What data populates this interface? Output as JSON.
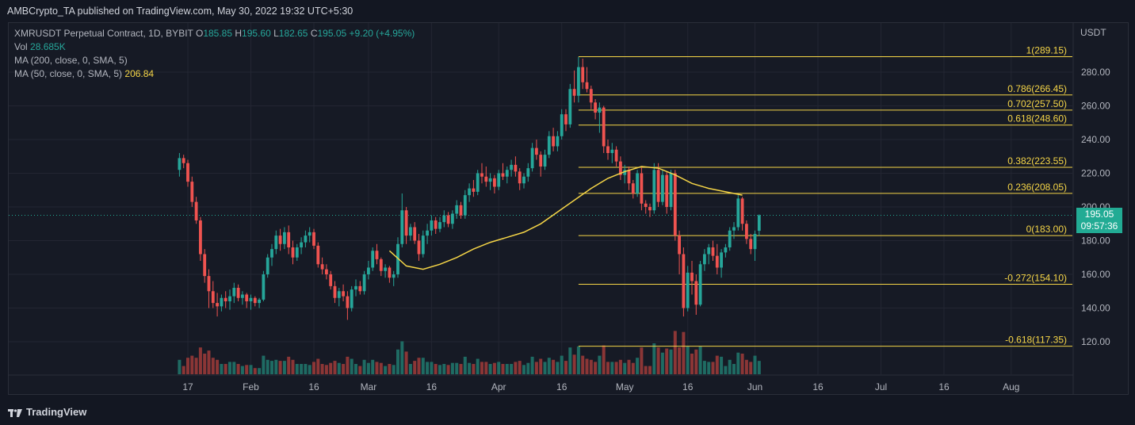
{
  "header": {
    "publisher_line": "AMBCrypto_TA published on TradingView.com, May 30, 2022 19:32 UTC+5:30"
  },
  "legend": {
    "symbol": "XMRUSDT Perpetual Contract, 1D, BYBIT",
    "o_label": "O",
    "o_value": "185.85",
    "h_label": "H",
    "h_value": "195.60",
    "l_label": "L",
    "l_value": "182.65",
    "c_label": "C",
    "c_value": "195.05",
    "change": "+9.20 (+4.95%)",
    "vol_label": "Vol",
    "vol_value": "28.685K",
    "ma200_label": "MA (200, close, 0, SMA, 5)",
    "ma50_label": "MA (50, close, 0, SMA, 5)",
    "ma50_value": "206.84"
  },
  "price_tag": {
    "price": "195.05",
    "countdown": "09:57:36"
  },
  "footer": {
    "brand": "TradingView"
  },
  "colors": {
    "up": "#26a69a",
    "down": "#ef5350",
    "fib": "#f5d547",
    "ma50": "#f5d547",
    "bg": "#161a25"
  },
  "chart_data": {
    "type": "candlestick",
    "currency_label": "USDT",
    "y_ticks": [
      120,
      140,
      160,
      180,
      200,
      220,
      240,
      260,
      280
    ],
    "y_tick_labels": [
      "120.00",
      "140.00",
      "160.00",
      "180.00",
      "200.00",
      "220.00",
      "240.00",
      "260.00",
      "280.00"
    ],
    "x_ticks": [
      "17",
      "Feb",
      "16",
      "Mar",
      "16",
      "Apr",
      "16",
      "May",
      "16",
      "Jun",
      "16",
      "Jul",
      "16",
      "Aug"
    ],
    "x_tick_dates": [
      "2022-01-17",
      "2022-02-01",
      "2022-02-16",
      "2022-03-01",
      "2022-03-16",
      "2022-04-01",
      "2022-04-16",
      "2022-05-01",
      "2022-05-16",
      "2022-06-01",
      "2022-06-16",
      "2022-07-01",
      "2022-07-16",
      "2022-08-01"
    ],
    "last_price": 195.05,
    "fib_levels": [
      {
        "label": "1(289.15)",
        "price": 289.15
      },
      {
        "label": "0.786(266.45)",
        "price": 266.45
      },
      {
        "label": "0.702(257.50)",
        "price": 257.5
      },
      {
        "label": "0.618(248.60)",
        "price": 248.6
      },
      {
        "label": "0.382(223.55)",
        "price": 223.55
      },
      {
        "label": "0.236(208.05)",
        "price": 208.05
      },
      {
        "label": "0(183.00)",
        "price": 183.0
      },
      {
        "label": "-0.272(154.10)",
        "price": 154.1
      },
      {
        "label": "-0.618(117.35)",
        "price": 117.35
      }
    ],
    "fib_start": "2022-04-20",
    "ma50": [
      [
        "2022-03-06",
        174
      ],
      [
        "2022-03-10",
        165
      ],
      [
        "2022-03-14",
        163
      ],
      [
        "2022-03-18",
        166
      ],
      [
        "2022-03-22",
        170
      ],
      [
        "2022-03-26",
        175
      ],
      [
        "2022-03-30",
        179
      ],
      [
        "2022-04-03",
        182
      ],
      [
        "2022-04-07",
        185
      ],
      [
        "2022-04-11",
        190
      ],
      [
        "2022-04-15",
        197
      ],
      [
        "2022-04-19",
        204
      ],
      [
        "2022-04-23",
        211
      ],
      [
        "2022-04-27",
        217
      ],
      [
        "2022-05-01",
        221
      ],
      [
        "2022-05-05",
        224
      ],
      [
        "2022-05-09",
        223
      ],
      [
        "2022-05-13",
        219
      ],
      [
        "2022-05-17",
        214
      ],
      [
        "2022-05-21",
        211
      ],
      [
        "2022-05-25",
        209
      ],
      [
        "2022-05-29",
        207
      ]
    ],
    "candles": [
      [
        "2022-01-15",
        222,
        232,
        218,
        229
      ],
      [
        "2022-01-16",
        229,
        231,
        223,
        226
      ],
      [
        "2022-01-17",
        226,
        228,
        212,
        215
      ],
      [
        "2022-01-18",
        215,
        218,
        200,
        203
      ],
      [
        "2022-01-19",
        203,
        206,
        190,
        192
      ],
      [
        "2022-01-20",
        192,
        194,
        168,
        172
      ],
      [
        "2022-01-21",
        172,
        175,
        155,
        159
      ],
      [
        "2022-01-22",
        159,
        163,
        140,
        150
      ],
      [
        "2022-01-23",
        150,
        156,
        140,
        143
      ],
      [
        "2022-01-24",
        143,
        149,
        135,
        141
      ],
      [
        "2022-01-25",
        141,
        148,
        138,
        146
      ],
      [
        "2022-01-26",
        146,
        150,
        140,
        144
      ],
      [
        "2022-01-27",
        144,
        151,
        139,
        147
      ],
      [
        "2022-01-28",
        147,
        155,
        143,
        152
      ],
      [
        "2022-01-29",
        152,
        154,
        144,
        146
      ],
      [
        "2022-01-30",
        146,
        150,
        142,
        148
      ],
      [
        "2022-01-31",
        148,
        149,
        140,
        144
      ],
      [
        "2022-02-01",
        144,
        148,
        139,
        146
      ],
      [
        "2022-02-02",
        146,
        147,
        141,
        143
      ],
      [
        "2022-02-03",
        143,
        146,
        140,
        145
      ],
      [
        "2022-02-04",
        145,
        162,
        144,
        160
      ],
      [
        "2022-02-05",
        160,
        172,
        158,
        170
      ],
      [
        "2022-02-06",
        170,
        178,
        165,
        175
      ],
      [
        "2022-02-07",
        175,
        186,
        172,
        183
      ],
      [
        "2022-02-08",
        183,
        187,
        174,
        178
      ],
      [
        "2022-02-09",
        178,
        188,
        175,
        185
      ],
      [
        "2022-02-10",
        185,
        189,
        172,
        176
      ],
      [
        "2022-02-11",
        176,
        180,
        166,
        170
      ],
      [
        "2022-02-12",
        170,
        178,
        168,
        176
      ],
      [
        "2022-02-13",
        176,
        182,
        172,
        179
      ],
      [
        "2022-02-14",
        179,
        186,
        176,
        183
      ],
      [
        "2022-02-15",
        183,
        188,
        179,
        185
      ],
      [
        "2022-02-16",
        185,
        187,
        175,
        177
      ],
      [
        "2022-02-17",
        177,
        179,
        164,
        166
      ],
      [
        "2022-02-18",
        166,
        170,
        160,
        163
      ],
      [
        "2022-02-19",
        163,
        166,
        157,
        160
      ],
      [
        "2022-02-20",
        160,
        162,
        151,
        153
      ],
      [
        "2022-02-21",
        153,
        156,
        143,
        146
      ],
      [
        "2022-02-22",
        146,
        152,
        141,
        150
      ],
      [
        "2022-02-23",
        150,
        154,
        144,
        147
      ],
      [
        "2022-02-24",
        147,
        150,
        133,
        140
      ],
      [
        "2022-02-25",
        140,
        153,
        138,
        151
      ],
      [
        "2022-02-26",
        151,
        157,
        147,
        153
      ],
      [
        "2022-02-27",
        153,
        156,
        148,
        150
      ],
      [
        "2022-02-28",
        150,
        162,
        148,
        160
      ],
      [
        "2022-03-01",
        160,
        168,
        157,
        164
      ],
      [
        "2022-03-02",
        164,
        176,
        162,
        174
      ],
      [
        "2022-03-03",
        174,
        178,
        166,
        169
      ],
      [
        "2022-03-04",
        169,
        170,
        159,
        162
      ],
      [
        "2022-03-05",
        162,
        166,
        158,
        164
      ],
      [
        "2022-03-06",
        164,
        165,
        155,
        158
      ],
      [
        "2022-03-07",
        158,
        162,
        153,
        160
      ],
      [
        "2022-03-08",
        160,
        182,
        158,
        178
      ],
      [
        "2022-03-09",
        178,
        208,
        176,
        198
      ],
      [
        "2022-03-10",
        198,
        200,
        178,
        183
      ],
      [
        "2022-03-11",
        183,
        190,
        180,
        188
      ],
      [
        "2022-03-12",
        188,
        191,
        178,
        180
      ],
      [
        "2022-03-13",
        180,
        184,
        168,
        172
      ],
      [
        "2022-03-14",
        172,
        186,
        170,
        183
      ],
      [
        "2022-03-15",
        183,
        190,
        178,
        186
      ],
      [
        "2022-03-16",
        186,
        195,
        183,
        192
      ],
      [
        "2022-03-17",
        192,
        194,
        184,
        187
      ],
      [
        "2022-03-18",
        187,
        194,
        185,
        191
      ],
      [
        "2022-03-19",
        191,
        198,
        188,
        195
      ],
      [
        "2022-03-20",
        195,
        197,
        188,
        190
      ],
      [
        "2022-03-21",
        190,
        198,
        187,
        196
      ],
      [
        "2022-03-22",
        196,
        204,
        193,
        201
      ],
      [
        "2022-03-23",
        201,
        203,
        193,
        195
      ],
      [
        "2022-03-24",
        195,
        210,
        193,
        207
      ],
      [
        "2022-03-25",
        207,
        214,
        203,
        211
      ],
      [
        "2022-03-26",
        211,
        216,
        206,
        209
      ],
      [
        "2022-03-27",
        209,
        222,
        207,
        220
      ],
      [
        "2022-03-28",
        220,
        226,
        214,
        218
      ],
      [
        "2022-03-29",
        218,
        224,
        212,
        215
      ],
      [
        "2022-03-30",
        215,
        220,
        210,
        217
      ],
      [
        "2022-03-31",
        217,
        219,
        208,
        212
      ],
      [
        "2022-04-01",
        212,
        222,
        210,
        220
      ],
      [
        "2022-04-02",
        220,
        226,
        216,
        218
      ],
      [
        "2022-04-03",
        218,
        224,
        214,
        222
      ],
      [
        "2022-04-04",
        222,
        228,
        218,
        225
      ],
      [
        "2022-04-05",
        225,
        230,
        218,
        221
      ],
      [
        "2022-04-06",
        221,
        223,
        210,
        214
      ],
      [
        "2022-04-07",
        214,
        220,
        211,
        218
      ],
      [
        "2022-04-08",
        218,
        226,
        215,
        223
      ],
      [
        "2022-04-09",
        223,
        238,
        221,
        235
      ],
      [
        "2022-04-10",
        235,
        240,
        228,
        231
      ],
      [
        "2022-04-11",
        231,
        233,
        218,
        224
      ],
      [
        "2022-04-12",
        224,
        234,
        222,
        231
      ],
      [
        "2022-04-13",
        231,
        245,
        229,
        242
      ],
      [
        "2022-04-14",
        242,
        247,
        233,
        236
      ],
      [
        "2022-04-15",
        236,
        245,
        233,
        242
      ],
      [
        "2022-04-16",
        242,
        258,
        240,
        255
      ],
      [
        "2022-04-17",
        255,
        258,
        245,
        249
      ],
      [
        "2022-04-18",
        249,
        273,
        247,
        270
      ],
      [
        "2022-04-19",
        270,
        281,
        262,
        266
      ],
      [
        "2022-04-20",
        266,
        289,
        262,
        283
      ],
      [
        "2022-04-21",
        283,
        288,
        270,
        274
      ],
      [
        "2022-04-22",
        274,
        283,
        268,
        270
      ],
      [
        "2022-04-23",
        270,
        272,
        258,
        262
      ],
      [
        "2022-04-24",
        262,
        264,
        252,
        256
      ],
      [
        "2022-04-25",
        256,
        262,
        244,
        259
      ],
      [
        "2022-04-26",
        259,
        260,
        232,
        236
      ],
      [
        "2022-04-27",
        236,
        240,
        228,
        232
      ],
      [
        "2022-04-28",
        232,
        238,
        226,
        234
      ],
      [
        "2022-04-29",
        234,
        236,
        224,
        227
      ],
      [
        "2022-04-30",
        227,
        230,
        216,
        219
      ],
      [
        "2022-05-01",
        219,
        225,
        214,
        222
      ],
      [
        "2022-05-02",
        222,
        224,
        210,
        214
      ],
      [
        "2022-05-03",
        214,
        216,
        205,
        208
      ],
      [
        "2022-05-04",
        208,
        222,
        206,
        220
      ],
      [
        "2022-05-05",
        220,
        224,
        198,
        202
      ],
      [
        "2022-05-06",
        202,
        204,
        196,
        200
      ],
      [
        "2022-05-07",
        200,
        202,
        194,
        198
      ],
      [
        "2022-05-08",
        198,
        226,
        196,
        222
      ],
      [
        "2022-05-09",
        222,
        226,
        200,
        203
      ],
      [
        "2022-05-10",
        203,
        222,
        201,
        219
      ],
      [
        "2022-05-11",
        219,
        221,
        196,
        200
      ],
      [
        "2022-05-12",
        200,
        222,
        198,
        220
      ],
      [
        "2022-05-13",
        220,
        222,
        180,
        183
      ],
      [
        "2022-05-14",
        183,
        186,
        160,
        172
      ],
      [
        "2022-05-15",
        172,
        176,
        135,
        140
      ],
      [
        "2022-05-16",
        140,
        165,
        138,
        161
      ],
      [
        "2022-05-17",
        161,
        168,
        148,
        156
      ],
      [
        "2022-05-18",
        156,
        160,
        136,
        142
      ],
      [
        "2022-05-19",
        142,
        168,
        141,
        166
      ],
      [
        "2022-05-20",
        166,
        175,
        162,
        172
      ],
      [
        "2022-05-21",
        172,
        178,
        166,
        176
      ],
      [
        "2022-05-22",
        176,
        180,
        168,
        171
      ],
      [
        "2022-05-23",
        171,
        178,
        160,
        164
      ],
      [
        "2022-05-24",
        164,
        175,
        158,
        173
      ],
      [
        "2022-05-25",
        173,
        178,
        170,
        176
      ],
      [
        "2022-05-26",
        176,
        188,
        174,
        186
      ],
      [
        "2022-05-27",
        186,
        191,
        181,
        188
      ],
      [
        "2022-05-28",
        188,
        207,
        186,
        205
      ],
      [
        "2022-05-29",
        205,
        206,
        186,
        190
      ],
      [
        "2022-05-30",
        190,
        192,
        178,
        181
      ],
      [
        "2022-05-31",
        181,
        184,
        172,
        175
      ],
      [
        "2022-06-01",
        175,
        186,
        168,
        184
      ],
      [
        "2022-06-02",
        185.85,
        195.6,
        182.65,
        195.05
      ]
    ]
  }
}
